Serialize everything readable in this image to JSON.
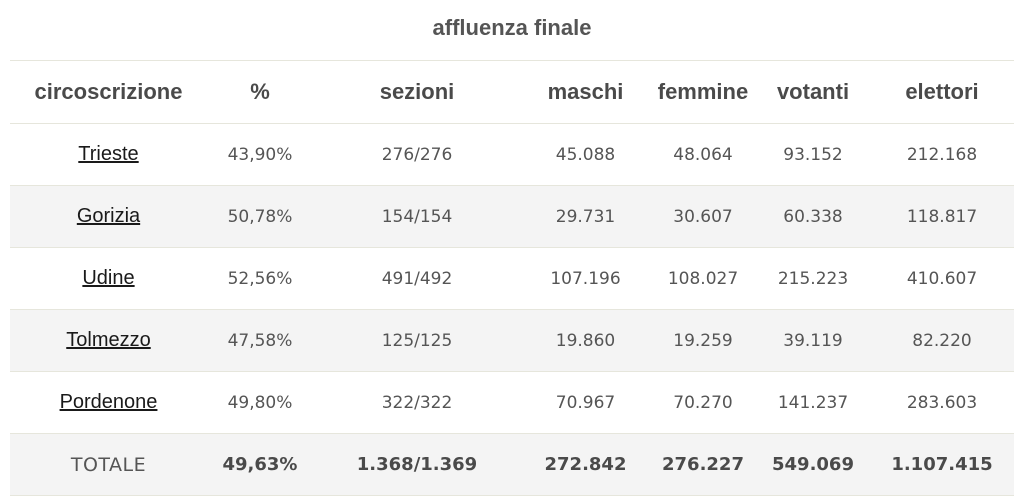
{
  "title": "affluenza finale",
  "columns": [
    "circoscrizione",
    "%",
    "sezioni",
    "maschi",
    "femmine",
    "votanti",
    "elettori"
  ],
  "rows": [
    {
      "name": "Trieste",
      "pct": "43,90%",
      "sezioni": "276/276",
      "maschi": "45.088",
      "femmine": "48.064",
      "votanti": "93.152",
      "elettori": "212.168"
    },
    {
      "name": "Gorizia",
      "pct": "50,78%",
      "sezioni": "154/154",
      "maschi": "29.731",
      "femmine": "30.607",
      "votanti": "60.338",
      "elettori": "118.817"
    },
    {
      "name": "Udine",
      "pct": "52,56%",
      "sezioni": "491/492",
      "maschi": "107.196",
      "femmine": "108.027",
      "votanti": "215.223",
      "elettori": "410.607"
    },
    {
      "name": "Tolmezzo",
      "pct": "47,58%",
      "sezioni": "125/125",
      "maschi": "19.860",
      "femmine": "19.259",
      "votanti": "39.119",
      "elettori": "82.220"
    },
    {
      "name": "Pordenone",
      "pct": "49,80%",
      "sezioni": "322/322",
      "maschi": "70.967",
      "femmine": "70.270",
      "votanti": "141.237",
      "elettori": "283.603"
    }
  ],
  "total": {
    "name": "TOTALE",
    "pct": "49,63%",
    "sezioni": "1.368/1.369",
    "maschi": "272.842",
    "femmine": "276.227",
    "votanti": "549.069",
    "elettori": "1.107.415"
  }
}
